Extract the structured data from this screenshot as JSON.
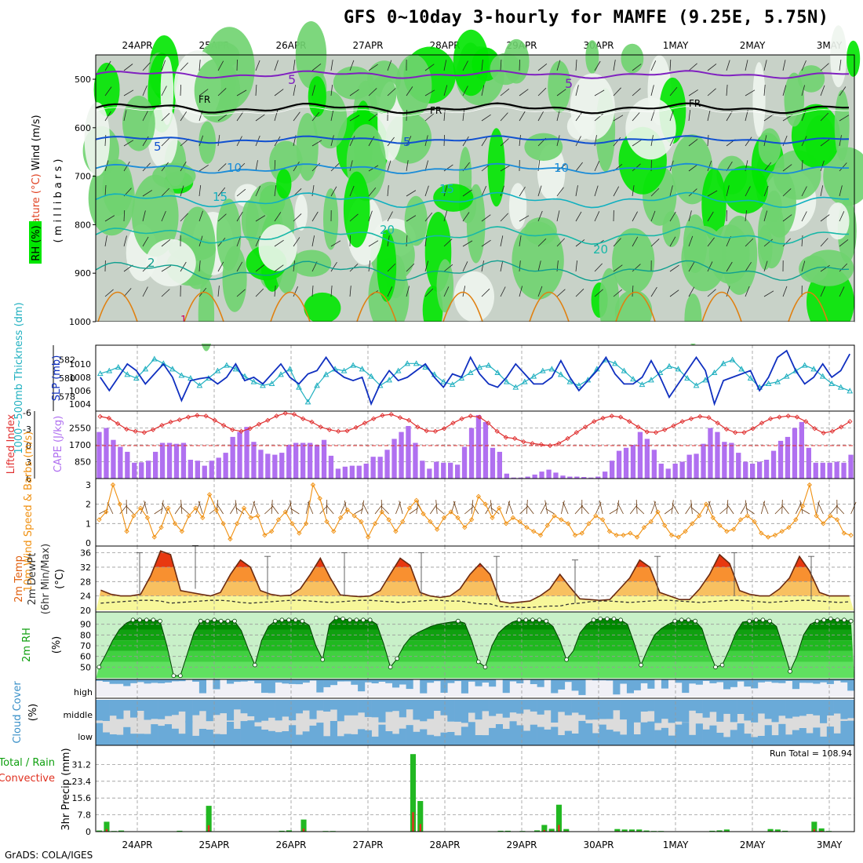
{
  "title": "GFS 0~10day 3-hourly for MAMFE (9.25E, 5.75N)",
  "credit": "GrADS: COLA/IGES",
  "dates": [
    "24APR",
    "25APR",
    "26APR",
    "27APR",
    "28APR",
    "29APR",
    "30APR",
    "1MAY",
    "2MAY",
    "3MAY"
  ],
  "chart_data": [
    {
      "type": "heatmap",
      "name": "upper-air cross-section",
      "ylabel_parts": [
        "Wind (m/s)",
        "Temperature (°C)",
        "RH (%)",
        "( m i l l i b a r s )"
      ],
      "yticks": [
        500,
        600,
        700,
        800,
        900,
        1000
      ],
      "contour_labels": [
        "5",
        "FR",
        "5",
        "10",
        "15",
        "20",
        "2",
        "1"
      ],
      "colors": {
        "dry": "#c8d2c8",
        "moist": "#6fd36f",
        "wet": "#00e600",
        "very_dry": "#eef5ee"
      }
    },
    {
      "type": "line",
      "name": "thickness-slp",
      "ylabel_left": "1000~500mb Thickness (dm)",
      "ylabel_right": "SLP (mb)",
      "yticks_left": [
        578,
        580,
        582
      ],
      "yticks_right": [
        1004,
        1006,
        1008,
        1010
      ],
      "thickness": [
        580.5,
        580.8,
        581.2,
        580.4,
        580.0,
        581.0,
        582.1,
        581.6,
        581.0,
        580.3,
        580.0,
        579.2,
        580.0,
        580.8,
        581.4,
        581.0,
        580.2,
        579.6,
        579.2,
        579.4,
        580.4,
        581.0,
        579.0,
        577.4,
        579.2,
        580.4,
        581.0,
        580.8,
        581.4,
        581.0,
        580.2,
        579.2,
        579.8,
        580.8,
        581.6,
        581.6,
        581.2,
        580.4,
        579.6,
        579.3,
        580.0,
        580.6,
        581.2,
        581.4,
        580.6,
        579.6,
        579.0,
        579.6,
        580.2,
        580.8,
        581.0,
        580.4,
        579.6,
        579.2,
        579.8,
        581.0,
        582.0,
        581.6,
        580.8,
        579.9,
        579.3,
        579.8,
        580.6,
        581.3,
        581.0,
        580.0,
        579.2,
        579.8,
        580.6,
        581.6,
        582.0,
        581.0,
        580.0,
        579.0,
        579.4,
        579.6,
        580.2,
        580.8,
        581.4,
        581.0,
        580.2,
        579.4,
        579.0,
        578.6
      ],
      "slp": [
        1008.0,
        1006.0,
        1008.0,
        1010.0,
        1009.0,
        1007.0,
        1008.5,
        1010.0,
        1008.0,
        1004.5,
        1007.5,
        1007.8,
        1008.0,
        1007.0,
        1008.0,
        1010.0,
        1007.5,
        1008.0,
        1007.0,
        1008.5,
        1010.0,
        1008.0,
        1007.0,
        1008.5,
        1009.0,
        1011.0,
        1009.0,
        1008.0,
        1007.5,
        1008.0,
        1004.0,
        1007.0,
        1009.0,
        1007.5,
        1008.0,
        1009.0,
        1010.0,
        1008.0,
        1006.5,
        1008.5,
        1008.0,
        1011.0,
        1008.5,
        1007.0,
        1006.5,
        1008.0,
        1010.0,
        1008.5,
        1007.0,
        1007.0,
        1008.0,
        1010.5,
        1008.0,
        1006.0,
        1007.5,
        1009.0,
        1011.0,
        1008.5,
        1007.0,
        1007.0,
        1008.0,
        1010.5,
        1008.0,
        1005.0,
        1007.0,
        1009.0,
        1011.0,
        1009.0,
        1004.0,
        1007.5,
        1008.0,
        1008.5,
        1009.0,
        1006.0,
        1008.0,
        1011.0,
        1012.0,
        1009.0,
        1007.0,
        1008.0,
        1010.0,
        1008.0,
        1009.0,
        1011.5
      ]
    },
    {
      "type": "bar",
      "name": "cape-li",
      "ylabel_left": "Lifted Index",
      "ylabel_right": "CAPE (J/kg)",
      "yticks_left": [
        "-6",
        "-3",
        "0",
        "3",
        "6"
      ],
      "yticks_right": [
        850,
        1700,
        2550
      ],
      "cape": [
        2350,
        2550,
        1950,
        1600,
        1350,
        800,
        820,
        900,
        1350,
        1800,
        1800,
        1750,
        1800,
        950,
        900,
        650,
        900,
        1050,
        1300,
        2100,
        2350,
        2600,
        1850,
        1450,
        1250,
        1200,
        1300,
        1700,
        1800,
        1800,
        1800,
        1700,
        1950,
        1150,
        500,
        600,
        650,
        650,
        750,
        1100,
        1100,
        1450,
        2000,
        2350,
        2650,
        1800,
        900,
        500,
        850,
        800,
        800,
        700,
        1600,
        2550,
        3200,
        2850,
        1550,
        1350,
        250,
        50,
        50,
        100,
        200,
        350,
        450,
        300,
        150,
        100,
        100,
        80,
        50,
        100,
        350,
        900,
        1400,
        1550,
        1700,
        2350,
        2000,
        1450,
        750,
        500,
        750,
        850,
        1200,
        1250,
        1750,
        2550,
        2350,
        1850,
        1800,
        1300,
        850,
        750,
        850,
        950,
        1400,
        1900,
        2100,
        2550,
        2850,
        1550,
        800,
        800,
        800,
        850,
        800,
        1200
      ],
      "li": [
        -5.3,
        -5.0,
        -4.0,
        -3.0,
        -2.6,
        -2.4,
        -2.9,
        -3.7,
        -4.3,
        -4.7,
        -5.2,
        -5.5,
        -5.4,
        -4.6,
        -3.7,
        -2.9,
        -2.6,
        -3.1,
        -3.9,
        -4.6,
        -5.4,
        -5.9,
        -5.7,
        -4.9,
        -4.3,
        -3.4,
        -2.9,
        -2.6,
        -2.7,
        -3.3,
        -4.1,
        -4.9,
        -5.5,
        -5.7,
        -5.1,
        -4.6,
        -3.4,
        -2.7,
        -2.6,
        -3.1,
        -4.1,
        -4.9,
        -5.4,
        -5.2,
        -4.1,
        -2.6,
        -1.5,
        -1.3,
        -0.7,
        -0.4,
        -0.2,
        0.0,
        -0.4,
        -1.3,
        -2.4,
        -3.4,
        -4.4,
        -5.0,
        -5.4,
        -5.2,
        -4.4,
        -3.4,
        -2.5,
        -2.4,
        -2.9,
        -3.6,
        -4.4,
        -4.9,
        -5.3,
        -5.1,
        -4.1,
        -3.0,
        -2.4,
        -2.4,
        -3.1,
        -4.1,
        -4.9,
        -5.2,
        -5.4,
        -5.2,
        -4.4,
        -3.1,
        -2.3,
        -2.6,
        -3.4,
        -4.4
      ]
    },
    {
      "type": "line",
      "name": "wind",
      "ylabel": "10m Wind Speed & Barbs (m/s)",
      "yticks": [
        0,
        1,
        2,
        3
      ],
      "speed": [
        1.2,
        1.6,
        3.0,
        2.0,
        0.6,
        1.4,
        1.8,
        1.3,
        0.3,
        0.8,
        1.8,
        1.0,
        0.6,
        1.4,
        1.8,
        1.3,
        2.5,
        1.7,
        1.0,
        0.2,
        1.0,
        1.8,
        1.3,
        1.4,
        0.4,
        0.6,
        1.2,
        1.6,
        1.0,
        0.5,
        1.0,
        3.0,
        2.3,
        1.1,
        0.6,
        1.3,
        1.7,
        1.4,
        1.1,
        0.3,
        1.0,
        1.6,
        1.2,
        0.6,
        1.1,
        1.8,
        2.2,
        1.5,
        1.1,
        0.7,
        1.3,
        1.6,
        1.3,
        0.8,
        1.2,
        2.4,
        2.0,
        1.3,
        1.8,
        1.0,
        1.3,
        1.1,
        0.8,
        0.6,
        0.4,
        0.9,
        1.4,
        1.2,
        1.0,
        0.4,
        0.5,
        1.0,
        1.4,
        1.2,
        0.6,
        0.4,
        0.4,
        0.5,
        0.3,
        0.8,
        1.1,
        1.6,
        0.9,
        0.4,
        0.3,
        0.6,
        1.0,
        1.4,
        2.0,
        1.3,
        0.9,
        0.6,
        0.7,
        1.2,
        1.4,
        1.1,
        0.5,
        0.3,
        0.4,
        0.6,
        0.8,
        1.2,
        1.9,
        3.0,
        1.4,
        1.0,
        1.4,
        1.2,
        0.5,
        0.4
      ]
    },
    {
      "type": "area",
      "name": "temperature",
      "ylabel": "2m Temp 2m DewPt (6hr Min/Max) (°C)",
      "yticks": [
        20,
        24,
        28,
        32,
        36
      ],
      "temp": [
        25.6,
        24.5,
        24.0,
        24.0,
        24.5,
        29.6,
        36.5,
        35.5,
        25.5,
        25.0,
        24.5,
        24.0,
        25.0,
        30.0,
        34.0,
        32.0,
        25.5,
        24.5,
        24.0,
        24.2,
        26.0,
        30.0,
        34.5,
        29.0,
        24.3,
        24.0,
        23.8,
        24.0,
        25.5,
        30.0,
        34.5,
        32.5,
        25.0,
        24.0,
        23.6,
        24.0,
        26.0,
        30.0,
        33.0,
        30.0,
        22.5,
        22.0,
        22.3,
        22.6,
        24.0,
        26.0,
        30.0,
        26.5,
        23.2,
        23.0,
        22.8,
        23.0,
        26.0,
        29.0,
        34.0,
        32.0,
        25.0,
        24.0,
        23.0,
        23.0,
        26.0,
        30.0,
        35.5,
        33.0,
        25.5,
        24.5,
        24.0,
        24.0,
        26.0,
        29.0,
        35.0,
        31.0,
        25.0,
        24.0,
        24.0,
        24.0
      ],
      "dewpt": [
        22.0,
        22.2,
        22.4,
        22.6,
        22.8,
        22.8,
        22.6,
        22.0,
        22.2,
        22.4,
        22.6,
        22.8,
        22.8,
        22.6,
        22.2,
        22.0,
        22.2,
        22.4,
        22.6,
        22.8,
        22.8,
        22.6,
        22.4,
        22.2,
        22.4,
        22.6,
        22.8,
        22.8,
        22.6,
        22.4,
        22.2,
        22.4,
        22.6,
        22.8,
        22.8,
        22.6,
        22.6,
        22.2,
        21.8,
        21.8,
        21.0,
        21.0,
        20.8,
        20.8,
        21.0,
        21.2,
        21.2,
        21.8,
        22.0,
        22.4,
        22.6,
        22.6,
        22.4,
        22.2,
        22.4,
        22.6,
        22.8,
        22.8,
        22.6,
        22.4,
        22.2,
        22.4,
        22.6,
        22.8,
        22.8,
        22.6,
        22.4,
        22.2,
        22.4,
        22.6,
        22.8,
        22.8,
        22.6,
        22.4,
        22.2,
        22.4
      ]
    },
    {
      "type": "area",
      "name": "relative-humidity",
      "ylabel": "2m RH (%)",
      "yticks": [
        50,
        60,
        70,
        80,
        90
      ],
      "rh": [
        50,
        62,
        75,
        85,
        91,
        94,
        94,
        94,
        94,
        93,
        70,
        42,
        42,
        62,
        82,
        93,
        93,
        94,
        93,
        93,
        93,
        84,
        67,
        52,
        75,
        88,
        93,
        94,
        94,
        94,
        93,
        89,
        70,
        57,
        90,
        96,
        95,
        94,
        94,
        94,
        94,
        90,
        72,
        50,
        58,
        70,
        78,
        82,
        85,
        88,
        90,
        91,
        92,
        93,
        91,
        75,
        55,
        50,
        70,
        82,
        88,
        92,
        94,
        94,
        94,
        94,
        93,
        88,
        75,
        57,
        65,
        82,
        90,
        94,
        95,
        95,
        95,
        94,
        90,
        72,
        52,
        67,
        80,
        86,
        90,
        93,
        94,
        94,
        93,
        86,
        66,
        50,
        52,
        66,
        82,
        92,
        93,
        94,
        94,
        93,
        88,
        68,
        46,
        60,
        80,
        90,
        93,
        94,
        95,
        94,
        94,
        93
      ]
    },
    {
      "type": "bar",
      "name": "cloud-cover",
      "ylabel": "Cloud Cover (%)",
      "levels": [
        "high",
        "middle",
        "low"
      ],
      "colors": {
        "cloud": "#6aaad8",
        "clear": "#dcdcdc"
      }
    },
    {
      "type": "bar",
      "name": "precipitation",
      "ylabel": "3hr Precip (mm)",
      "legend": [
        "Total / Rain",
        "Convective"
      ],
      "run_total": "Run Total = 108.94",
      "yticks": [
        "0",
        "7.8",
        "15.6",
        "23.4",
        "31.2"
      ],
      "total": [
        0.5,
        4.6,
        0.3,
        0.5,
        0,
        0,
        0,
        0,
        0,
        0,
        0,
        0.4,
        0,
        0,
        0,
        12.0,
        0,
        0,
        0,
        0,
        0,
        0,
        0,
        0,
        0,
        0.4,
        0.6,
        0,
        5.6,
        0,
        0,
        0.3,
        0.3,
        0,
        0,
        0,
        0,
        0,
        0,
        0,
        0,
        0,
        0,
        36.0,
        14.2,
        0,
        0,
        0,
        0,
        0,
        0,
        0,
        0,
        0,
        0,
        0.4,
        0.4,
        0,
        0.3,
        0,
        0.6,
        3.1,
        1.3,
        12.5,
        1.2,
        0,
        0,
        0,
        0,
        0,
        0,
        1.2,
        1.0,
        1.0,
        1.0,
        0.5,
        0.3,
        0.3,
        0,
        0,
        0,
        0,
        0,
        0,
        0.4,
        0.6,
        1.0,
        0,
        0,
        0,
        0,
        0,
        1.2,
        1.0,
        0.4,
        0,
        0,
        0,
        4.6,
        1.5,
        0.3,
        0,
        0,
        0
      ]
    }
  ]
}
